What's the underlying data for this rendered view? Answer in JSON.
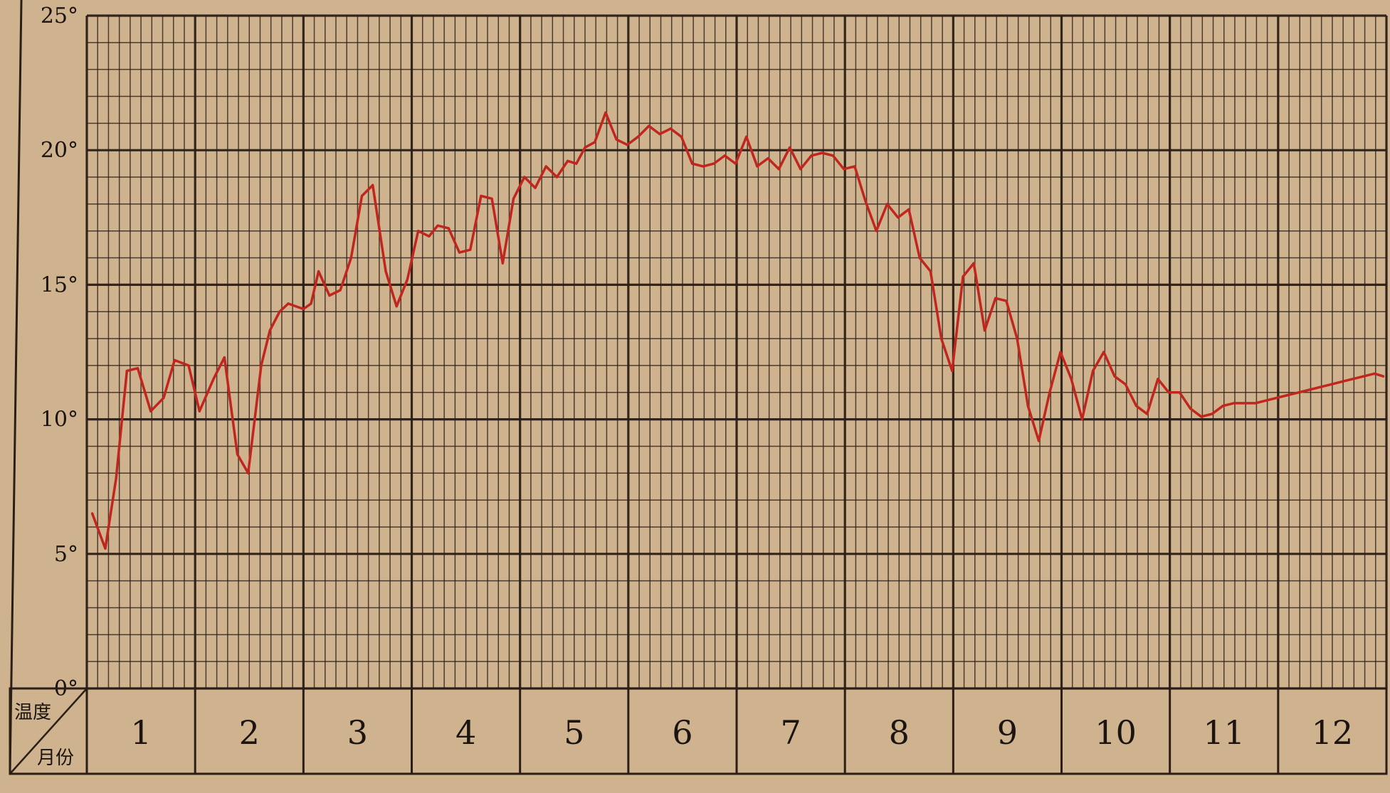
{
  "chart_data": {
    "type": "line",
    "title": "",
    "xlabel": "月份",
    "ylabel": "温度",
    "corner_header": {
      "top_label": "温度",
      "bottom_label": "月份"
    },
    "ylim": [
      0,
      25
    ],
    "xlim": [
      0,
      12
    ],
    "grid": true,
    "y_ticks": [
      {
        "value": 25,
        "label": "25°"
      },
      {
        "value": 20,
        "label": "20°"
      },
      {
        "value": 15,
        "label": "15°"
      },
      {
        "value": 10,
        "label": "10°"
      },
      {
        "value": 5,
        "label": "5°"
      },
      {
        "value": 0,
        "label": "0°"
      }
    ],
    "categories": [
      "1",
      "2",
      "3",
      "4",
      "5",
      "6",
      "7",
      "8",
      "9",
      "10",
      "11",
      "12"
    ],
    "line_color": "#c0261e",
    "grid_color": "#2a1e16",
    "background_color": "#cfb38f",
    "series": [
      {
        "x": [
          0.05,
          0.17,
          0.27,
          0.37,
          0.47,
          0.59,
          0.71,
          0.81,
          0.94,
          1.04,
          1.17,
          1.27,
          1.39,
          1.49,
          1.61,
          1.69,
          1.78,
          1.86,
          2.0,
          2.07,
          2.14,
          2.24,
          2.34,
          2.44,
          2.54,
          2.64,
          2.76,
          2.86,
          2.96,
          3.06,
          3.16,
          3.24,
          3.34,
          3.44,
          3.54,
          3.64,
          3.74,
          3.84,
          3.94,
          4.04,
          4.14,
          4.24,
          4.34,
          4.44,
          4.52,
          4.6,
          4.69,
          4.79,
          4.89,
          4.99,
          5.09,
          5.19,
          5.29,
          5.39,
          5.49,
          5.59,
          5.69,
          5.79,
          5.89,
          5.99,
          6.09,
          6.19,
          6.29,
          6.39,
          6.49,
          6.59,
          6.69,
          6.79,
          6.89,
          6.99,
          7.09,
          7.19,
          7.29,
          7.39,
          7.49,
          7.59,
          7.69,
          7.79,
          7.89,
          7.99,
          8.09,
          8.19,
          8.29,
          8.39,
          8.49,
          8.59,
          8.69,
          8.79,
          8.89,
          8.99,
          9.09,
          9.19,
          9.29,
          9.39,
          9.49,
          9.59,
          9.69,
          9.79,
          9.89,
          9.99,
          10.09,
          10.19,
          10.29,
          10.39,
          10.49,
          10.59,
          10.69,
          10.79,
          10.89,
          10.99,
          11.09,
          11.19,
          11.29,
          11.39,
          11.49,
          11.59,
          11.69,
          11.79,
          11.89,
          11.97
        ],
        "values": [
          6.5,
          5.2,
          7.8,
          11.8,
          11.9,
          10.3,
          10.8,
          12.2,
          12.0,
          10.3,
          11.5,
          12.3,
          8.7,
          8.0,
          12.0,
          13.3,
          14.0,
          14.3,
          14.1,
          14.3,
          15.5,
          14.6,
          14.8,
          16.0,
          18.3,
          18.7,
          15.5,
          14.2,
          15.2,
          17.0,
          16.8,
          17.2,
          17.1,
          16.2,
          16.3,
          18.3,
          18.2,
          15.8,
          18.2,
          19.0,
          18.6,
          19.4,
          19.0,
          19.6,
          19.5,
          20.1,
          20.3,
          21.4,
          20.4,
          20.2,
          20.5,
          20.9,
          20.6,
          20.8,
          20.5,
          19.5,
          19.4,
          19.5,
          19.8,
          19.5,
          20.5,
          19.4,
          19.7,
          19.3,
          20.1,
          19.3,
          19.8,
          19.9,
          19.8,
          19.3,
          19.4,
          18.1,
          17.0,
          18.0,
          17.5,
          17.8,
          16.0,
          15.5,
          13.0,
          11.8,
          15.3,
          15.8,
          13.3,
          14.5,
          14.4,
          13.0,
          10.5,
          9.2,
          11.0,
          12.5,
          11.5,
          10.0,
          11.8,
          12.5,
          11.6,
          11.3,
          10.5,
          10.2,
          11.5,
          11.0,
          11.0,
          10.4,
          10.1,
          10.2,
          10.5,
          10.6,
          10.6,
          10.6,
          10.7,
          10.8,
          10.9,
          11.0,
          11.1,
          11.2,
          11.3,
          11.4,
          11.5,
          11.6,
          11.7,
          11.6
        ]
      }
    ]
  }
}
